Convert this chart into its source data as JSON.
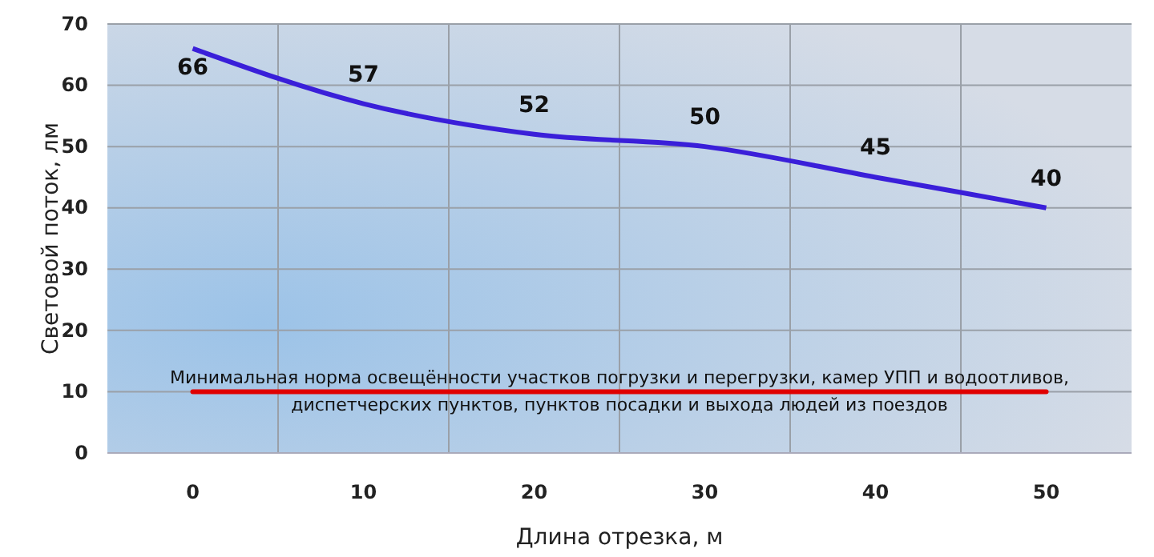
{
  "chart_data": {
    "type": "line",
    "xlabel": "Длина отрезка, м",
    "ylabel": "Световой поток, лм",
    "categories": [
      "0",
      "10",
      "20",
      "30",
      "40",
      "50"
    ],
    "series": [
      {
        "color": "#3a1fd9",
        "values": [
          66,
          57,
          52,
          50,
          45,
          40
        ]
      }
    ],
    "ylim": [
      0,
      70
    ],
    "yticks": [
      0,
      10,
      20,
      30,
      40,
      50,
      60,
      70
    ],
    "grid": true,
    "data_labels": true,
    "marker": "none",
    "ref_lines": [
      {
        "axis": "y",
        "value": 10,
        "label": "Минимальная  норма  освещённости  участков  погрузки  и перегрузки, камер  УПП  и водоотливов, диспетчерских  пунктов,  пунктов  посадки  и выхода людей из поездов",
        "color": "#e00000"
      }
    ]
  }
}
